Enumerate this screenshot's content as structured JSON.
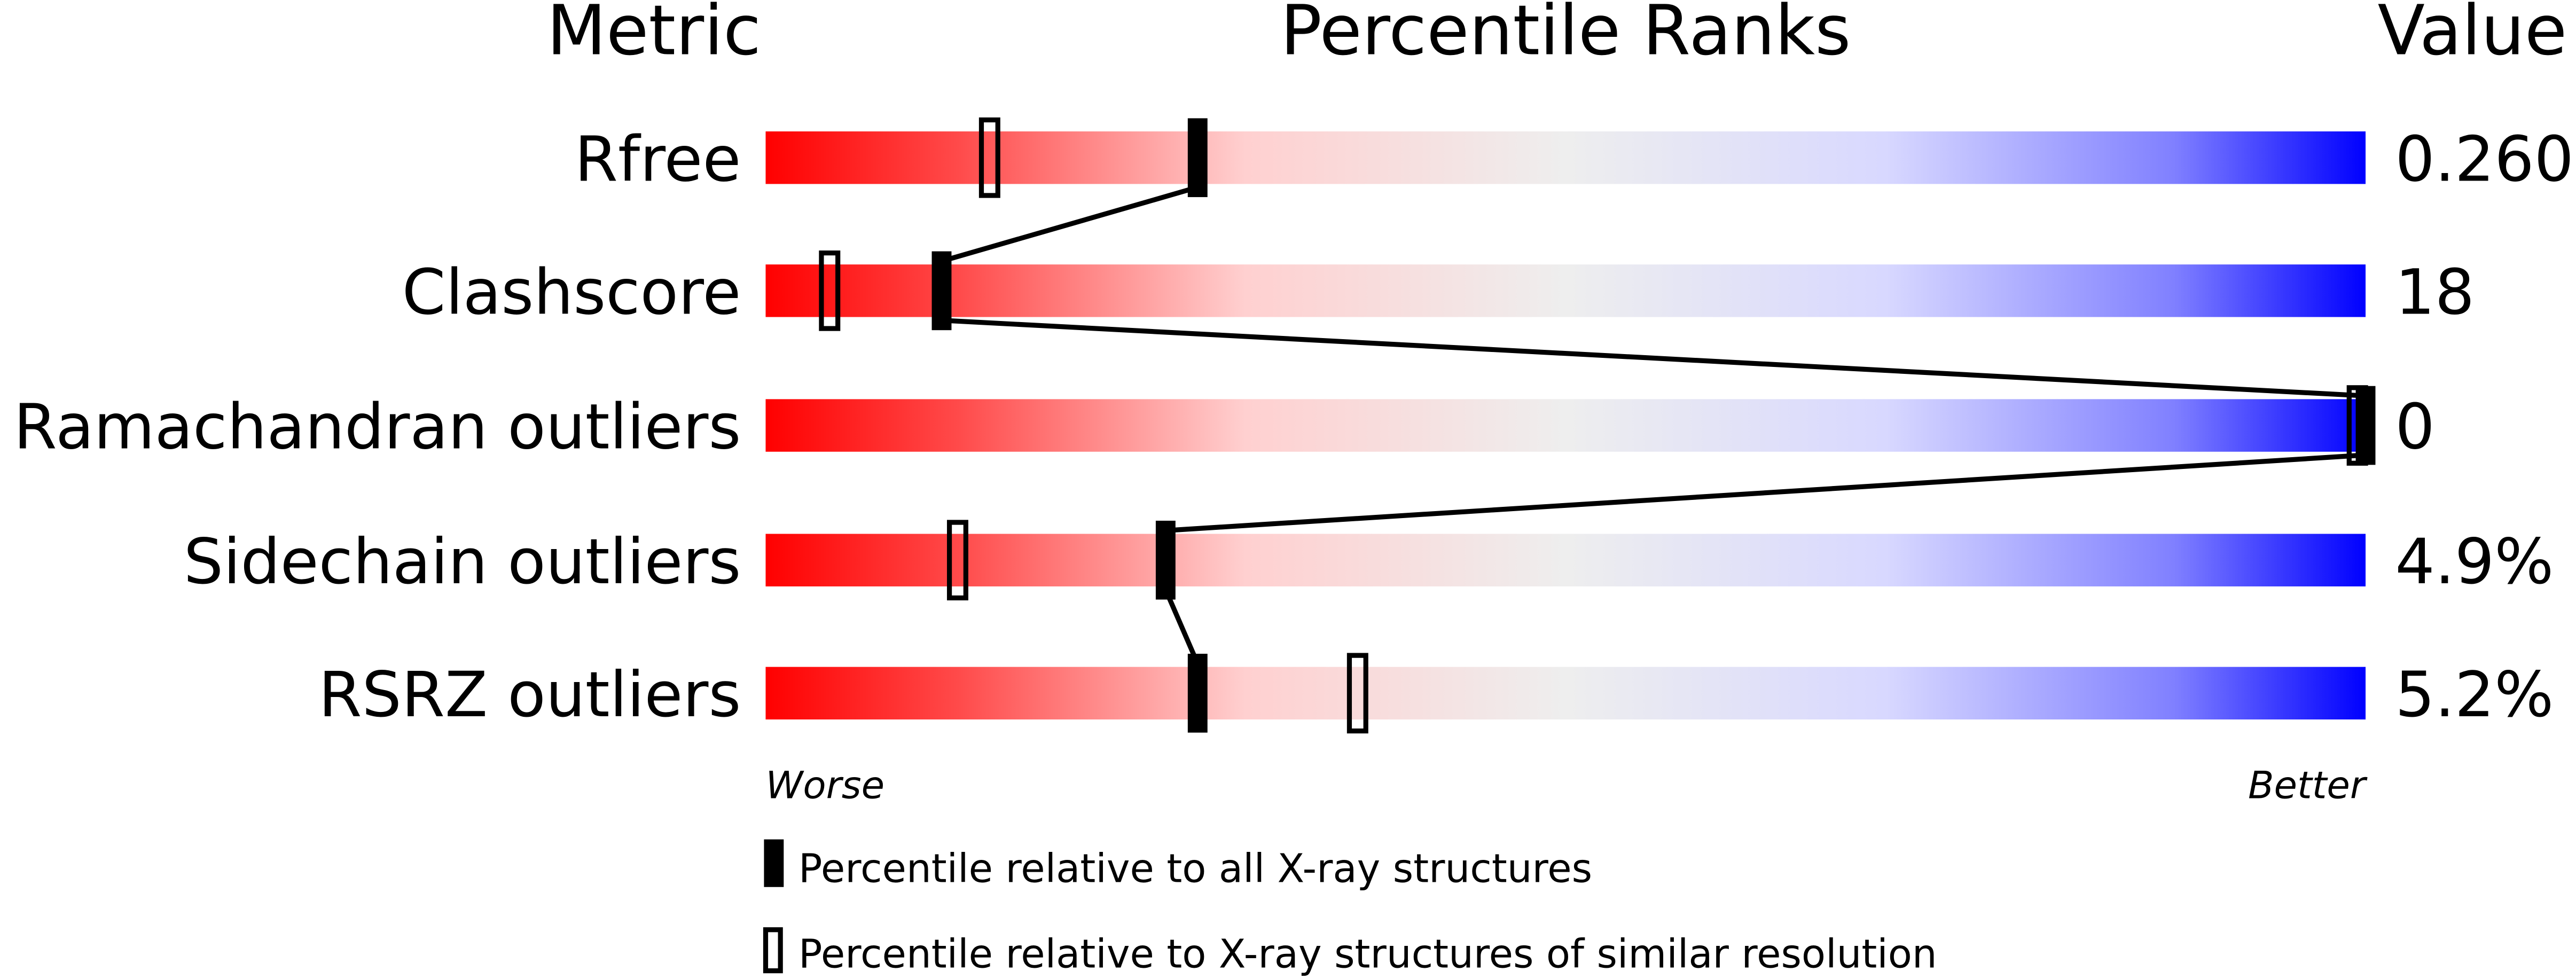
{
  "chart_data": {
    "type": "percentile-slider",
    "headers": {
      "metric": "Metric",
      "ranks": "Percentile Ranks",
      "value": "Value"
    },
    "axis": {
      "left_label": "Worse",
      "right_label": "Better",
      "range": [
        0,
        100
      ]
    },
    "metrics": [
      {
        "name": "Rfree",
        "value": "0.260",
        "percentile_all": 27,
        "percentile_similar": 14
      },
      {
        "name": "Clashscore",
        "value": "18",
        "percentile_all": 11,
        "percentile_similar": 4
      },
      {
        "name": "Ramachandran outliers",
        "value": "0",
        "percentile_all": 100,
        "percentile_similar": 100
      },
      {
        "name": "Sidechain outliers",
        "value": "4.9%",
        "percentile_all": 25,
        "percentile_similar": 12
      },
      {
        "name": "RSRZ outliers",
        "value": "5.2%",
        "percentile_all": 27,
        "percentile_similar": 37
      }
    ],
    "legend": [
      {
        "marker": "filled",
        "label": "Percentile relative to all X-ray structures"
      },
      {
        "marker": "open",
        "label": "Percentile relative to X-ray structures of similar resolution"
      }
    ],
    "colors": {
      "worse": "#ff0000",
      "middle": "#eeeeee",
      "better": "#0000ff",
      "marker": "#000000"
    }
  }
}
